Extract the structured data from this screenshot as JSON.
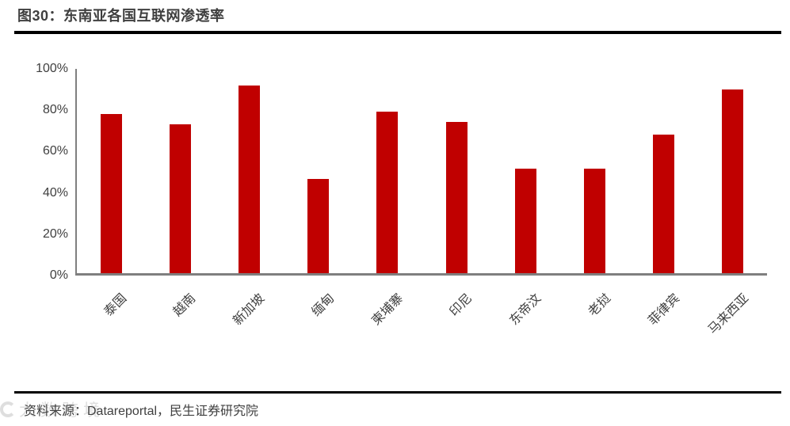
{
  "figure": {
    "title": "图30：东南亚各国互联网渗透率",
    "source": "资料来源：Datareportal，民生证券研究院"
  },
  "watermark": {
    "text": "大数跨境"
  },
  "chart_data": {
    "type": "bar",
    "title": "东南亚各国互联网渗透率",
    "categories": [
      "泰国",
      "越南",
      "新加坡",
      "缅甸",
      "柬埔寨",
      "印尼",
      "东帝汶",
      "老挝",
      "菲律宾",
      "马来西亚"
    ],
    "values": [
      78,
      73,
      92,
      46,
      79,
      74,
      51,
      51,
      68,
      90
    ],
    "unit": "%",
    "ylim": [
      0,
      100
    ],
    "ytick_values": [
      100,
      80,
      60,
      40,
      20,
      0
    ],
    "ytick_labels": [
      "100%",
      "80%",
      "60%",
      "40%",
      "20%",
      "0%"
    ],
    "xlabel": "",
    "ylabel": "",
    "grid": false,
    "legend": false,
    "bar_color": "#C00000",
    "axis_color": "#7F7F7F",
    "label_color": "#404040"
  }
}
